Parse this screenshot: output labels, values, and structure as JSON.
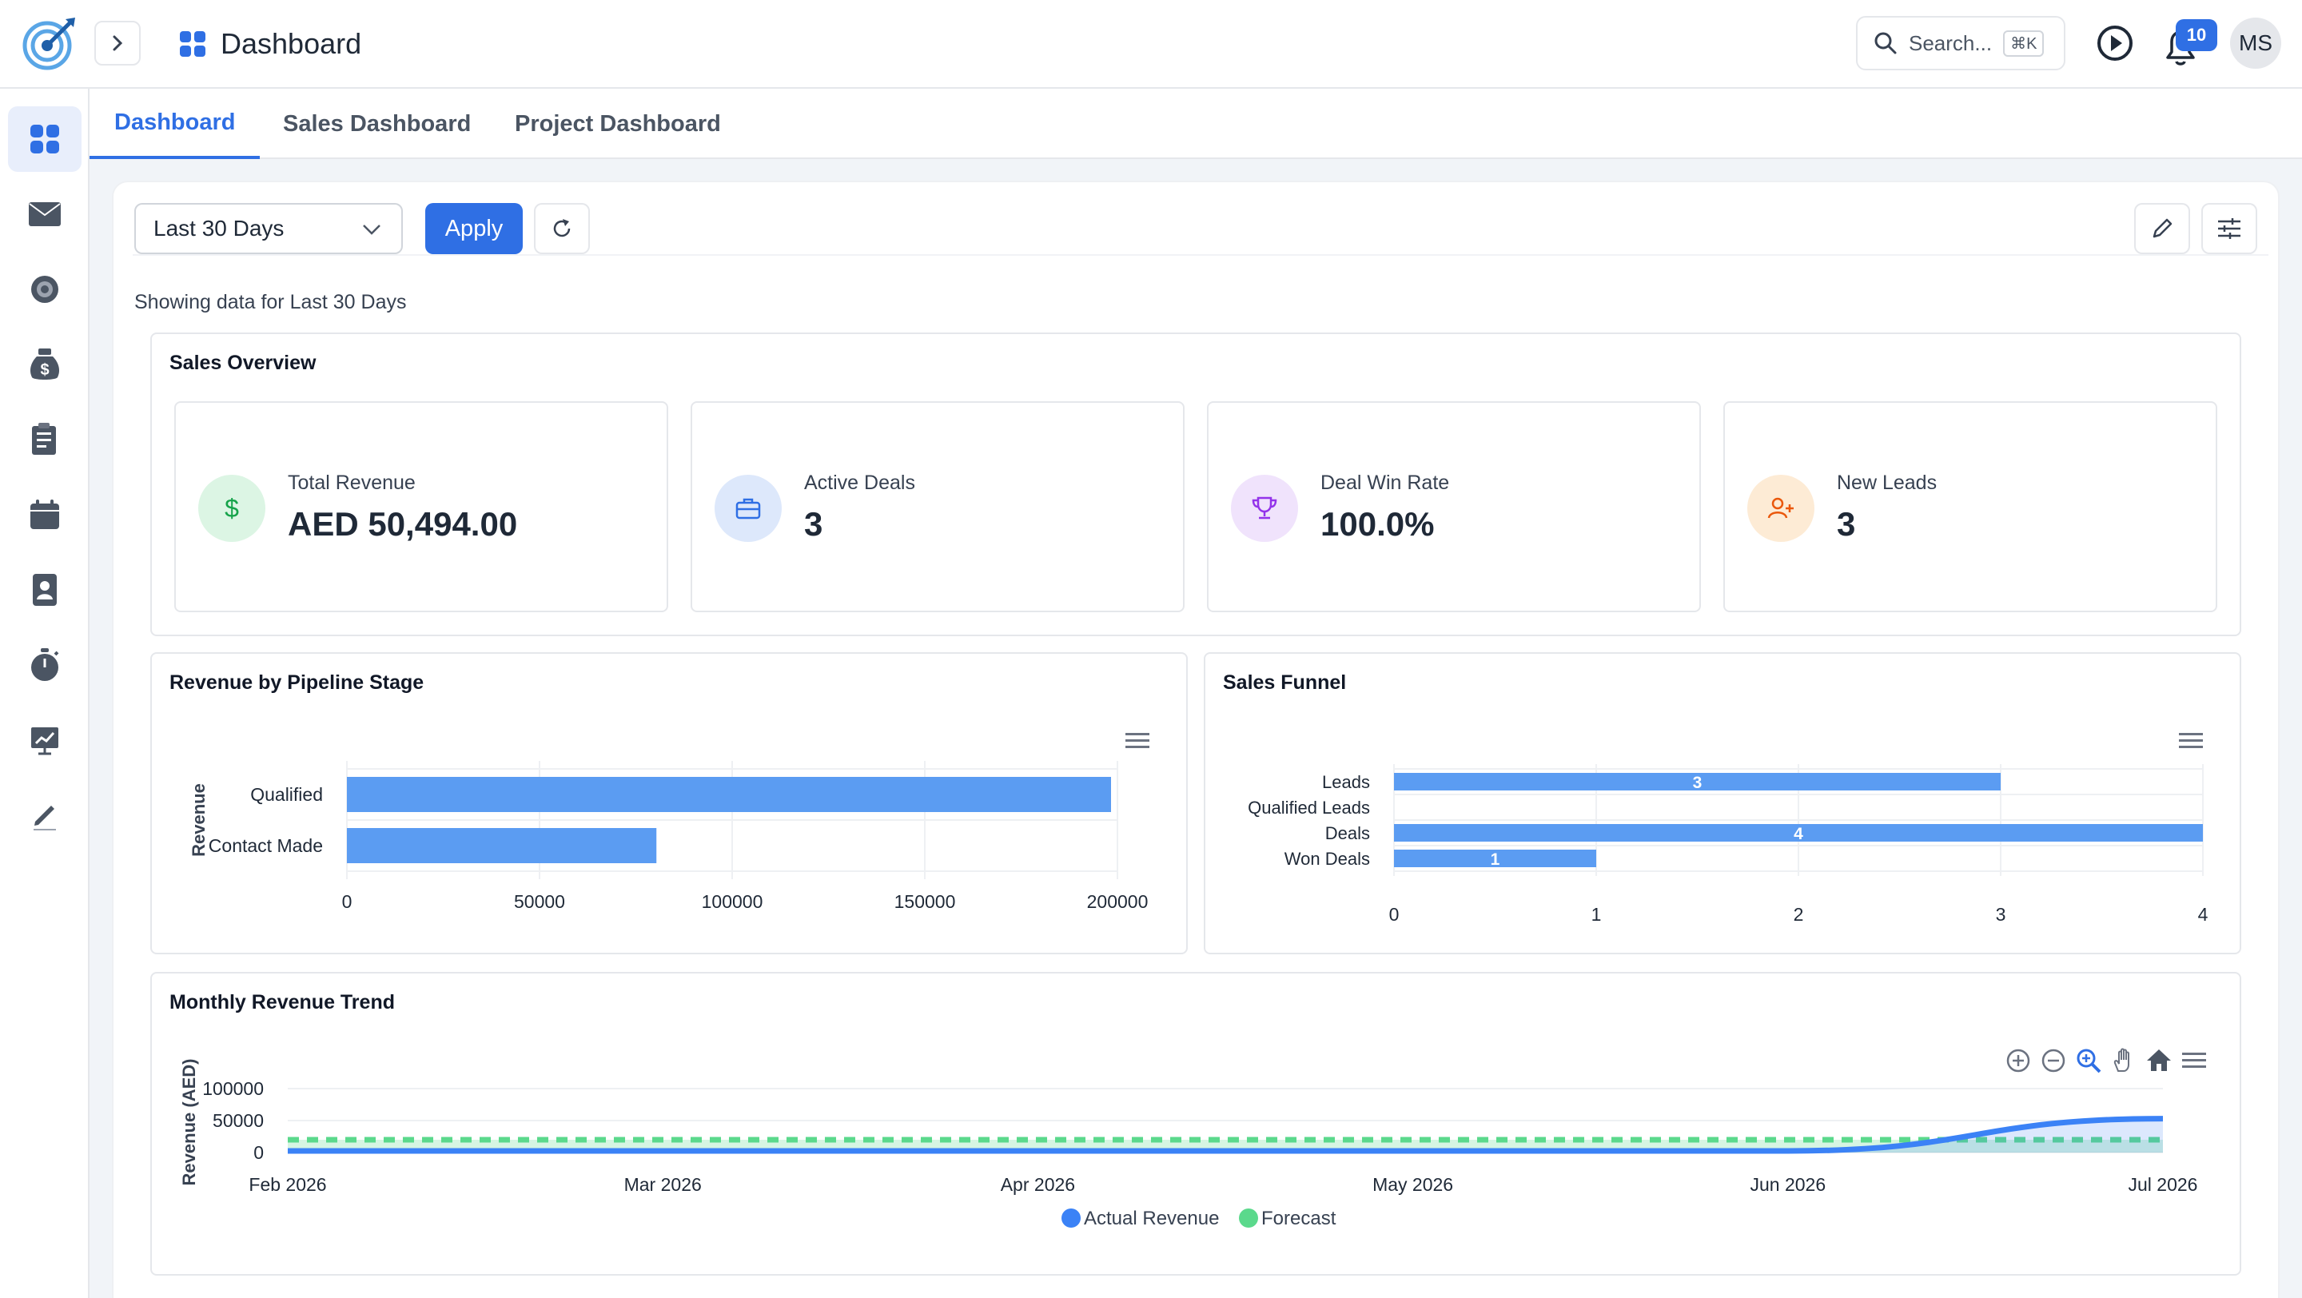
{
  "header": {
    "title": "Dashboard",
    "search_placeholder": "Search...",
    "search_shortcut": "⌘K",
    "notification_count": "10",
    "avatar_initials": "MS"
  },
  "sidebar": {
    "items": [
      {
        "name": "dashboard",
        "icon": "grid-icon",
        "active": true
      },
      {
        "name": "mail",
        "icon": "mail-icon"
      },
      {
        "name": "target",
        "icon": "target-icon"
      },
      {
        "name": "sales",
        "icon": "money-bag-icon"
      },
      {
        "name": "tasks",
        "icon": "checklist-icon"
      },
      {
        "name": "calendar",
        "icon": "calendar-icon"
      },
      {
        "name": "contacts",
        "icon": "contacts-icon"
      },
      {
        "name": "timer",
        "icon": "stopwatch-icon"
      },
      {
        "name": "reports",
        "icon": "chart-board-icon"
      },
      {
        "name": "notes",
        "icon": "pencil-icon"
      }
    ]
  },
  "tabs": [
    {
      "label": "Dashboard",
      "active": true
    },
    {
      "label": "Sales Dashboard"
    },
    {
      "label": "Project Dashboard"
    }
  ],
  "toolbar": {
    "range_value": "Last 30 Days",
    "apply_label": "Apply"
  },
  "showing_text": "Showing data for Last 30 Days",
  "sales_overview": {
    "title": "Sales Overview",
    "kpis": [
      {
        "label": "Total Revenue",
        "value": "AED 50,494.00",
        "icon": "dollar-icon",
        "color": "#16a34a"
      },
      {
        "label": "Active Deals",
        "value": "3",
        "icon": "briefcase-icon",
        "color": "#2f6fe4"
      },
      {
        "label": "Deal Win Rate",
        "value": "100.0%",
        "icon": "trophy-icon",
        "color": "#9333ea"
      },
      {
        "label": "New Leads",
        "value": "3",
        "icon": "user-plus-icon",
        "color": "#ea580c"
      }
    ]
  },
  "colors": {
    "accent": "#2f6fe4",
    "bar_blue": "#5b9cf2",
    "forecast_green": "#5bd98c",
    "actual_blue": "#3b82f6"
  },
  "chart_data": [
    {
      "type": "bar",
      "orientation": "horizontal",
      "title": "Revenue by Pipeline Stage",
      "categories": [
        "Qualified",
        "Contact Made"
      ],
      "values": [
        200000,
        82000
      ],
      "xlabel": "",
      "ylabel": "Revenue",
      "xlim": [
        0,
        200000
      ],
      "ticks": [
        "0",
        "50000",
        "100000",
        "150000",
        "200000"
      ],
      "grid": true
    },
    {
      "type": "bar",
      "orientation": "horizontal",
      "title": "Sales Funnel",
      "categories": [
        "Leads",
        "Qualified Leads",
        "Deals",
        "Won Deals"
      ],
      "values": [
        3,
        0,
        4,
        1
      ],
      "data_labels": [
        "3",
        "",
        "4",
        "1"
      ],
      "xlim": [
        0,
        4
      ],
      "ticks": [
        "0",
        "1",
        "2",
        "3",
        "4"
      ],
      "grid": true
    },
    {
      "type": "area",
      "title": "Monthly Revenue Trend",
      "ylabel": "Revenue (AED)",
      "x_labels": [
        "Feb 2026",
        "Mar 2026",
        "Apr 2026",
        "May 2026",
        "Jun 2026",
        "Jul 2026"
      ],
      "y_ticks": [
        "100000",
        "50000",
        "0"
      ],
      "ylim": [
        0,
        100000
      ],
      "series": [
        {
          "name": "Actual Revenue",
          "values": [
            0,
            0,
            0,
            0,
            0,
            50494
          ]
        },
        {
          "name": "Forecast",
          "values": [
            20000,
            20000,
            20000,
            20000,
            20000,
            20000
          ]
        }
      ],
      "legend": "bottom-center"
    }
  ]
}
